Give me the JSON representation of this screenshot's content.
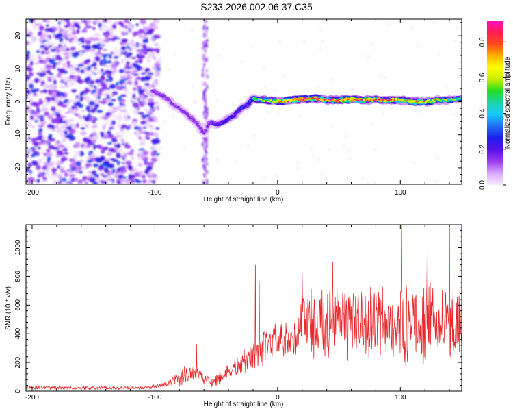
{
  "figure": {
    "title": "S233.2026.002.06.37.C35"
  },
  "chart_data": [
    {
      "type": "heatmap",
      "name": "spectrogram",
      "xlabel": "Height of straight line (km)",
      "ylabel": "Frequency (Hz)",
      "xlim": [
        -205,
        150
      ],
      "ylim": [
        -25,
        25
      ],
      "xticks": [
        -200,
        -100,
        0,
        100
      ],
      "yticks": [
        -20,
        -10,
        0,
        10,
        20
      ],
      "colorbar": {
        "label": "Normalized spectral amplitude",
        "range": [
          0,
          0.92
        ],
        "ticks": [
          0.0,
          0.2,
          0.4,
          0.6,
          0.8
        ],
        "tick_labels": [
          "0.0",
          "0.2",
          "0.4",
          "0.6",
          "0.8"
        ],
        "colors": [
          "#f6ecff",
          "#d9a8ff",
          "#9a3cf2",
          "#5a10e6",
          "#1e1ee8",
          "#1f6ff0",
          "#18c8ff",
          "#1fd4a8",
          "#22dd22",
          "#c8ee00",
          "#ffff00",
          "#ffb000",
          "#ff4a1a",
          "#ff1e50",
          "#ff10c8"
        ]
      },
      "ridge": {
        "x": [
          -100,
          -95,
          -90,
          -85,
          -80,
          -75,
          -70,
          -65,
          -60,
          -55,
          -50,
          -45,
          -40,
          -35,
          -30,
          -25,
          -20,
          -15,
          -10,
          -5,
          0,
          10,
          20,
          30,
          40,
          50,
          60,
          70,
          80,
          90,
          100,
          110,
          120,
          130,
          140,
          150
        ],
        "freq": [
          3,
          2,
          1,
          -1,
          -2,
          -3.5,
          -5,
          -7,
          -9.5,
          -6,
          -7,
          -6.5,
          -5,
          -4,
          -2,
          -1,
          1,
          0.5,
          0.5,
          0.3,
          0,
          0.5,
          0.8,
          1,
          0.5,
          0.5,
          0.7,
          0.5,
          0.6,
          0.5,
          0.5,
          0,
          -0.2,
          0.5,
          0.5,
          1
        ],
        "amplitude": [
          0.3,
          0.32,
          0.3,
          0.28,
          0.3,
          0.32,
          0.33,
          0.3,
          0.32,
          0.35,
          0.42,
          0.5,
          0.5,
          0.5,
          0.52,
          0.58,
          0.62,
          0.6,
          0.65,
          0.7,
          0.75,
          0.82,
          0.88,
          0.86,
          0.85,
          0.87,
          0.9,
          0.88,
          0.86,
          0.85,
          0.7,
          0.75,
          0.82,
          0.7,
          0.6,
          0.55
        ]
      },
      "noise_region_x": [
        -205,
        -100
      ]
    },
    {
      "type": "line",
      "name": "snr",
      "xlabel": "Height of straight line (km)",
      "ylabel": "SNR (10 * v/v)",
      "xlim": [
        -205,
        150
      ],
      "ylim": [
        0,
        1160
      ],
      "xticks": [
        -200,
        -100,
        0,
        100
      ],
      "yticks": [
        0,
        200,
        400,
        600,
        800,
        1000
      ],
      "color": "#e8282d",
      "envelope": {
        "x": [
          -205,
          -150,
          -110,
          -100,
          -90,
          -80,
          -75,
          -70,
          -65,
          -60,
          -55,
          -50,
          -45,
          -40,
          -35,
          -30,
          -25,
          -20,
          -15,
          -10,
          -5,
          0,
          5,
          10,
          15,
          20,
          25,
          30,
          40,
          50,
          60,
          70,
          80,
          90,
          100,
          110,
          120,
          130,
          140,
          150
        ],
        "mean": [
          25,
          22,
          22,
          30,
          50,
          80,
          120,
          140,
          120,
          90,
          60,
          80,
          110,
          140,
          160,
          190,
          220,
          250,
          280,
          300,
          330,
          360,
          330,
          320,
          360,
          520,
          500,
          480,
          470,
          490,
          500,
          480,
          470,
          470,
          460,
          470,
          480,
          470,
          460,
          500
        ],
        "spread": [
          15,
          12,
          10,
          15,
          25,
          45,
          70,
          80,
          60,
          50,
          35,
          45,
          55,
          60,
          70,
          80,
          90,
          100,
          110,
          120,
          130,
          140,
          140,
          140,
          150,
          200,
          220,
          230,
          240,
          250,
          260,
          250,
          250,
          250,
          270,
          260,
          260,
          250,
          250,
          260
        ]
      },
      "spikes": [
        {
          "x": -66,
          "y": 330
        },
        {
          "x": -18,
          "y": 880
        },
        {
          "x": -15,
          "y": 770
        },
        {
          "x": 20,
          "y": 820
        },
        {
          "x": 45,
          "y": 900
        },
        {
          "x": 101,
          "y": 1160
        },
        {
          "x": 140,
          "y": 1160
        },
        {
          "x": 122,
          "y": 1000
        }
      ]
    }
  ]
}
